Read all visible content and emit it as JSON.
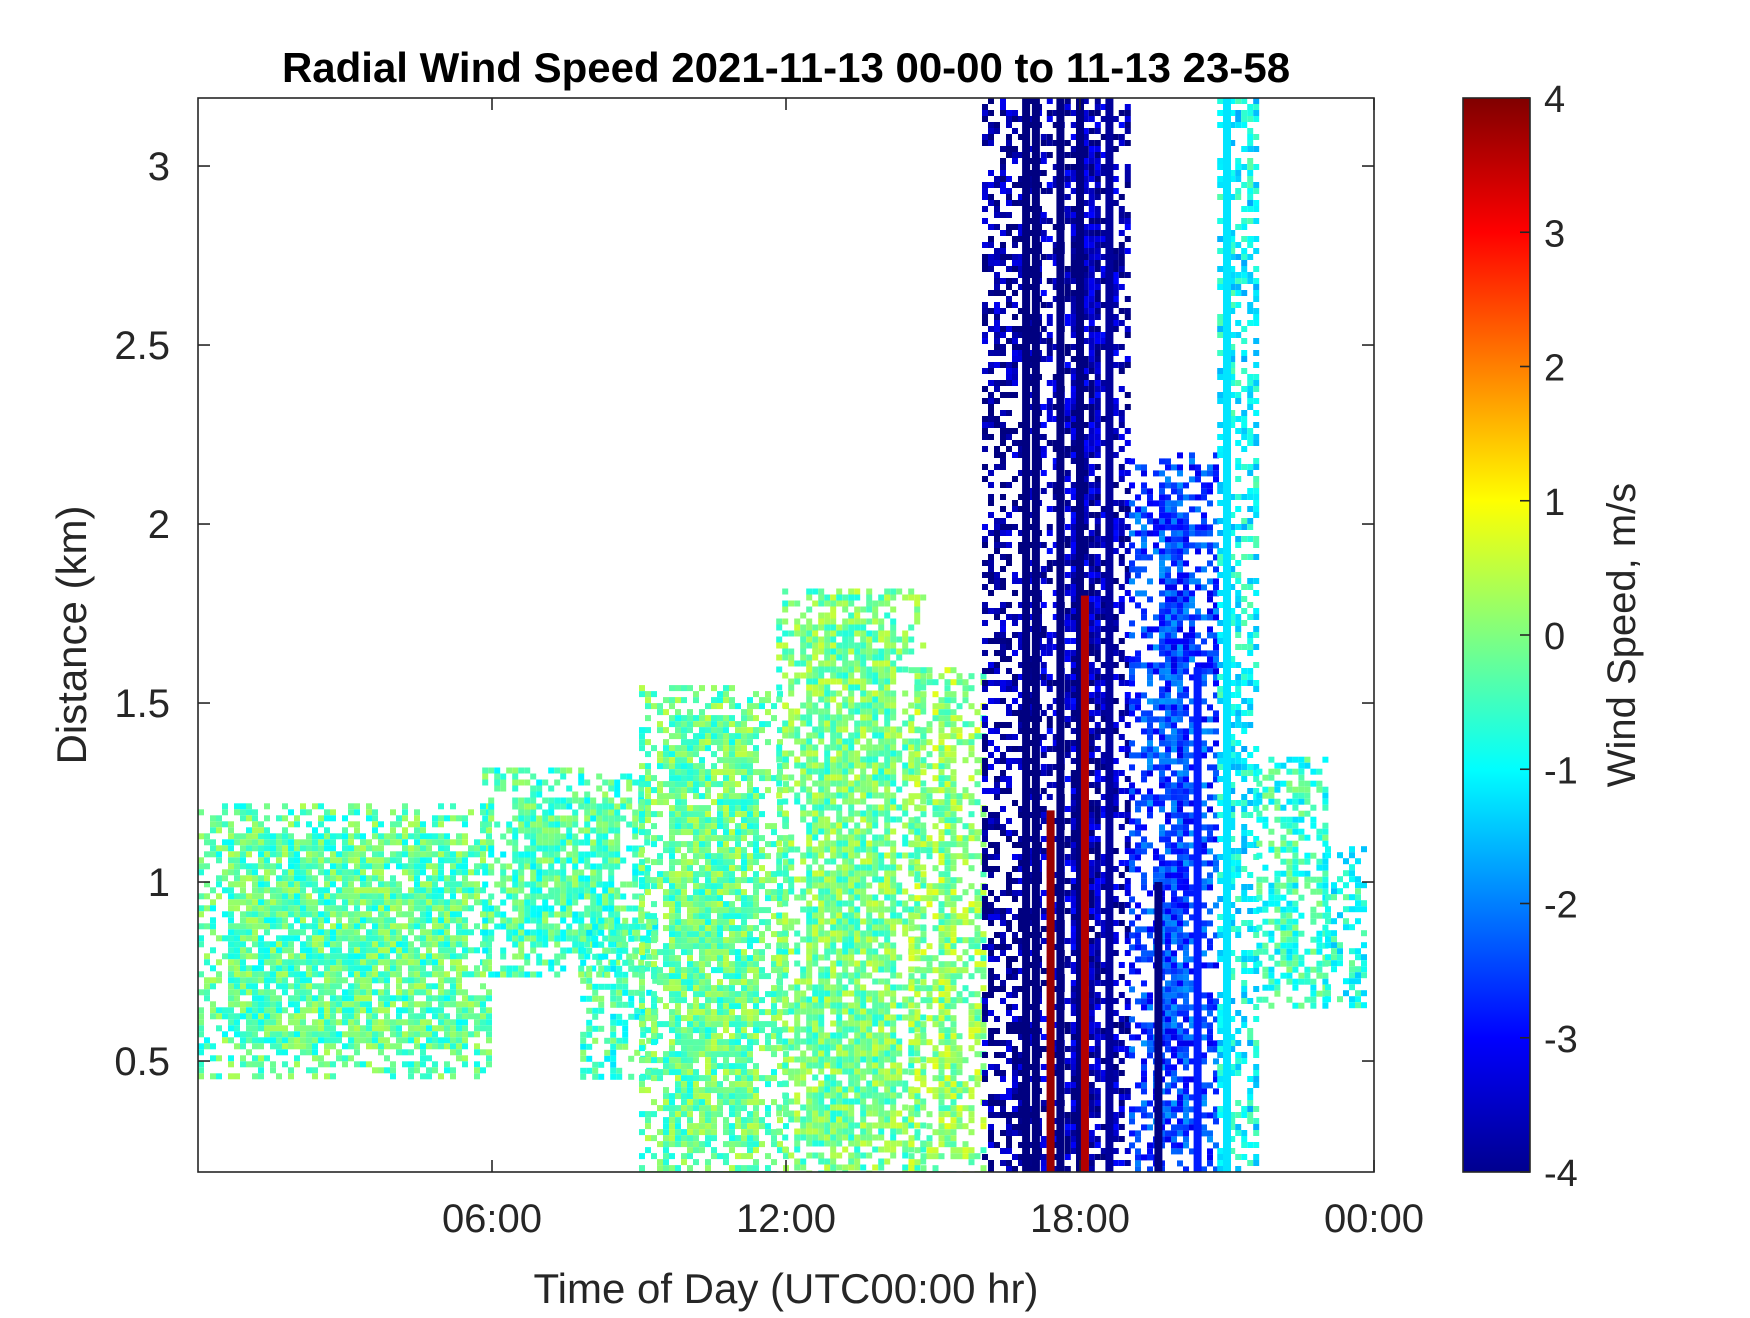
{
  "chart_data": {
    "type": "heatmap",
    "title": "Radial Wind Speed 2021-11-13 00-00 to 11-13 23-58",
    "xlabel": "Time of Day (UTC00:00 hr)",
    "ylabel": "Distance (km)",
    "colorbar_label": "Wind Speed, m/s",
    "xlim": [
      0,
      24
    ],
    "ylim": [
      0.19,
      3.19
    ],
    "clim": [
      -4,
      4
    ],
    "colormap": "jet",
    "x_ticks": [
      {
        "value": 6,
        "label": "06:00"
      },
      {
        "value": 12,
        "label": "12:00"
      },
      {
        "value": 18,
        "label": "18:00"
      },
      {
        "value": 24,
        "label": "00:00"
      }
    ],
    "y_ticks": [
      {
        "value": 0.5,
        "label": "0.5"
      },
      {
        "value": 1.0,
        "label": "1"
      },
      {
        "value": 1.5,
        "label": "1.5"
      },
      {
        "value": 2.0,
        "label": "2"
      },
      {
        "value": 2.5,
        "label": "2.5"
      },
      {
        "value": 3.0,
        "label": "3"
      }
    ],
    "colorbar_ticks": [
      {
        "value": 4,
        "label": "4"
      },
      {
        "value": 3,
        "label": "3"
      },
      {
        "value": 2,
        "label": "2"
      },
      {
        "value": 1,
        "label": "1"
      },
      {
        "value": 0,
        "label": "0"
      },
      {
        "value": -1,
        "label": "-1"
      },
      {
        "value": -2,
        "label": "-2"
      },
      {
        "value": -3,
        "label": "-3"
      },
      {
        "value": -4,
        "label": "-4"
      }
    ],
    "regions": [
      {
        "x": [
          0.0,
          6.0
        ],
        "y": [
          0.45,
          1.22
        ],
        "v": -0.3
      },
      {
        "x": [
          5.8,
          9.2
        ],
        "y": [
          0.75,
          1.32
        ],
        "v": -0.4
      },
      {
        "x": [
          7.8,
          9.3
        ],
        "y": [
          0.45,
          0.9
        ],
        "v": -0.5
      },
      {
        "x": [
          9.0,
          12.0
        ],
        "y": [
          0.19,
          1.55
        ],
        "v": -0.2
      },
      {
        "x": [
          11.8,
          14.8
        ],
        "y": [
          0.19,
          1.82
        ],
        "v": -0.1
      },
      {
        "x": [
          14.5,
          16.0
        ],
        "y": [
          0.19,
          1.6
        ],
        "v": 0.1
      },
      {
        "x": [
          16.0,
          17.2
        ],
        "y": [
          0.19,
          3.19
        ],
        "v": -3.8
      },
      {
        "x": [
          17.2,
          19.0
        ],
        "y": [
          0.19,
          3.19
        ],
        "v": -3.6
      },
      {
        "x": [
          19.0,
          20.8
        ],
        "y": [
          0.19,
          2.2
        ],
        "v": -2.5
      },
      {
        "x": [
          20.8,
          21.6
        ],
        "y": [
          0.19,
          3.19
        ],
        "v": -1.0
      },
      {
        "x": [
          21.6,
          23.0
        ],
        "y": [
          0.65,
          1.35
        ],
        "v": -0.6
      },
      {
        "x": [
          23.0,
          23.8
        ],
        "y": [
          0.65,
          1.1
        ],
        "v": -0.8
      }
    ],
    "streaks": [
      {
        "x": 16.9,
        "y": [
          0.19,
          3.19
        ],
        "v": -4
      },
      {
        "x": 17.1,
        "y": [
          0.19,
          3.19
        ],
        "v": -4
      },
      {
        "x": 17.4,
        "y": [
          0.19,
          1.2
        ],
        "v": 3.8
      },
      {
        "x": 17.6,
        "y": [
          0.19,
          3.19
        ],
        "v": -4
      },
      {
        "x": 18.0,
        "y": [
          0.19,
          3.19
        ],
        "v": -4
      },
      {
        "x": 18.1,
        "y": [
          0.19,
          1.8
        ],
        "v": 3.6
      },
      {
        "x": 18.6,
        "y": [
          0.19,
          3.19
        ],
        "v": -3.8
      },
      {
        "x": 19.6,
        "y": [
          0.19,
          1.0
        ],
        "v": -4
      },
      {
        "x": 20.4,
        "y": [
          0.19,
          1.6
        ],
        "v": -2.8
      },
      {
        "x": 21.0,
        "y": [
          0.19,
          3.19
        ],
        "v": -1.2
      }
    ]
  }
}
